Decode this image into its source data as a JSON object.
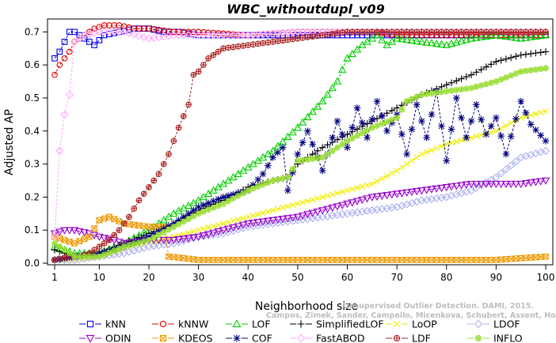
{
  "chart_data": {
    "type": "line",
    "title": "WBC_withoutdupl_v09",
    "xlabel": "Neighborhood size",
    "ylabel": "Adjusted AP",
    "xlim": [
      1,
      100
    ],
    "ylim": [
      0,
      0.72
    ],
    "xticks": [
      1,
      10,
      20,
      30,
      40,
      50,
      60,
      70,
      80,
      90,
      100
    ],
    "yticks": [
      0.0,
      0.1,
      0.2,
      0.3,
      0.4,
      0.5,
      0.6,
      0.7
    ],
    "ytick_labels": [
      "0.0",
      "0.1",
      "0.2",
      "0.3",
      "0.4",
      "0.5",
      "0.6",
      "0.7"
    ],
    "legend_position": "bottom",
    "series": [
      {
        "name": "kNN",
        "color": "#0000ee",
        "marker": "square",
        "points": [
          [
            1,
            0.62
          ],
          [
            2,
            0.64
          ],
          [
            3,
            0.67
          ],
          [
            4,
            0.7
          ],
          [
            5,
            0.7
          ],
          [
            7,
            0.68
          ],
          [
            9,
            0.66
          ],
          [
            11,
            0.69
          ],
          [
            14,
            0.7
          ],
          [
            17,
            0.71
          ],
          [
            20,
            0.71
          ],
          [
            23,
            0.7
          ],
          [
            26,
            0.7
          ],
          [
            30,
            0.69
          ],
          [
            40,
            0.69
          ],
          [
            50,
            0.69
          ],
          [
            60,
            0.69
          ],
          [
            70,
            0.69
          ],
          [
            80,
            0.69
          ],
          [
            90,
            0.69
          ],
          [
            100,
            0.69
          ]
        ]
      },
      {
        "name": "kNNW",
        "color": "#dd0000",
        "marker": "circle",
        "points": [
          [
            1,
            0.57
          ],
          [
            2,
            0.6
          ],
          [
            3,
            0.62
          ],
          [
            4,
            0.64
          ],
          [
            5,
            0.67
          ],
          [
            7,
            0.69
          ],
          [
            9,
            0.71
          ],
          [
            11,
            0.72
          ],
          [
            14,
            0.72
          ],
          [
            17,
            0.71
          ],
          [
            20,
            0.71
          ],
          [
            25,
            0.7
          ],
          [
            30,
            0.7
          ],
          [
            40,
            0.69
          ],
          [
            50,
            0.7
          ],
          [
            60,
            0.7
          ],
          [
            65,
            0.7
          ],
          [
            70,
            0.69
          ],
          [
            80,
            0.69
          ],
          [
            90,
            0.69
          ],
          [
            100,
            0.69
          ]
        ]
      },
      {
        "name": "LOF",
        "color": "#00cc00",
        "marker": "triangle",
        "points": [
          [
            1,
            0.05
          ],
          [
            5,
            0.03
          ],
          [
            10,
            0.03
          ],
          [
            15,
            0.06
          ],
          [
            20,
            0.1
          ],
          [
            25,
            0.15
          ],
          [
            30,
            0.19
          ],
          [
            35,
            0.24
          ],
          [
            40,
            0.29
          ],
          [
            45,
            0.34
          ],
          [
            50,
            0.41
          ],
          [
            55,
            0.49
          ],
          [
            58,
            0.55
          ],
          [
            60,
            0.62
          ],
          [
            63,
            0.66
          ],
          [
            66,
            0.69
          ],
          [
            68,
            0.66
          ],
          [
            70,
            0.68
          ],
          [
            75,
            0.67
          ],
          [
            80,
            0.66
          ],
          [
            85,
            0.68
          ],
          [
            90,
            0.69
          ],
          [
            95,
            0.68
          ],
          [
            100,
            0.69
          ]
        ]
      },
      {
        "name": "SimplifiedLOF",
        "color": "#000000",
        "marker": "plus",
        "points": [
          [
            1,
            0.04
          ],
          [
            5,
            0.02
          ],
          [
            10,
            0.03
          ],
          [
            15,
            0.06
          ],
          [
            20,
            0.09
          ],
          [
            25,
            0.12
          ],
          [
            30,
            0.16
          ],
          [
            35,
            0.19
          ],
          [
            40,
            0.23
          ],
          [
            45,
            0.25
          ],
          [
            48,
            0.26
          ],
          [
            50,
            0.3
          ],
          [
            55,
            0.35
          ],
          [
            60,
            0.39
          ],
          [
            65,
            0.43
          ],
          [
            70,
            0.47
          ],
          [
            75,
            0.51
          ],
          [
            80,
            0.54
          ],
          [
            85,
            0.57
          ],
          [
            90,
            0.61
          ],
          [
            95,
            0.63
          ],
          [
            100,
            0.64
          ]
        ]
      },
      {
        "name": "LoOP",
        "color": "#eeee00",
        "marker": "cross",
        "points": [
          [
            1,
            0.01
          ],
          [
            5,
            0.01
          ],
          [
            10,
            0.02
          ],
          [
            15,
            0.04
          ],
          [
            20,
            0.06
          ],
          [
            25,
            0.08
          ],
          [
            30,
            0.1
          ],
          [
            35,
            0.12
          ],
          [
            40,
            0.14
          ],
          [
            45,
            0.16
          ],
          [
            50,
            0.18
          ],
          [
            55,
            0.2
          ],
          [
            60,
            0.22
          ],
          [
            65,
            0.24
          ],
          [
            70,
            0.28
          ],
          [
            75,
            0.33
          ],
          [
            80,
            0.36
          ],
          [
            85,
            0.38
          ],
          [
            90,
            0.4
          ],
          [
            95,
            0.44
          ],
          [
            100,
            0.46
          ]
        ]
      },
      {
        "name": "LDOF",
        "color": "#aab0ee",
        "marker": "diamond",
        "points": [
          [
            1,
            0.01
          ],
          [
            5,
            0.01
          ],
          [
            10,
            0.02
          ],
          [
            15,
            0.03
          ],
          [
            20,
            0.05
          ],
          [
            25,
            0.06
          ],
          [
            30,
            0.08
          ],
          [
            35,
            0.09
          ],
          [
            40,
            0.11
          ],
          [
            45,
            0.12
          ],
          [
            50,
            0.13
          ],
          [
            55,
            0.14
          ],
          [
            60,
            0.15
          ],
          [
            65,
            0.16
          ],
          [
            70,
            0.17
          ],
          [
            75,
            0.19
          ],
          [
            80,
            0.2
          ],
          [
            85,
            0.22
          ],
          [
            90,
            0.26
          ],
          [
            95,
            0.32
          ],
          [
            100,
            0.34
          ]
        ]
      },
      {
        "name": "ODIN",
        "color": "#9900cc",
        "marker": "triangle-down",
        "points": [
          [
            1,
            0.09
          ],
          [
            3,
            0.1
          ],
          [
            5,
            0.1
          ],
          [
            8,
            0.09
          ],
          [
            10,
            0.08
          ],
          [
            13,
            0.07
          ],
          [
            15,
            0.06
          ],
          [
            20,
            0.07
          ],
          [
            25,
            0.07
          ],
          [
            30,
            0.08
          ],
          [
            35,
            0.1
          ],
          [
            40,
            0.12
          ],
          [
            45,
            0.13
          ],
          [
            50,
            0.14
          ],
          [
            55,
            0.16
          ],
          [
            60,
            0.18
          ],
          [
            65,
            0.2
          ],
          [
            70,
            0.21
          ],
          [
            75,
            0.22
          ],
          [
            80,
            0.23
          ],
          [
            85,
            0.24
          ],
          [
            90,
            0.24
          ],
          [
            95,
            0.24
          ],
          [
            100,
            0.25
          ]
        ]
      },
      {
        "name": "KDEOS",
        "color": "#ee9900",
        "marker": "square-x",
        "points": [
          [
            1,
            0.08
          ],
          [
            3,
            0.07
          ],
          [
            5,
            0.06
          ],
          [
            8,
            0.08
          ],
          [
            10,
            0.13
          ],
          [
            12,
            0.14
          ],
          [
            15,
            0.12
          ],
          [
            20,
            0.11
          ],
          [
            23,
            0.11
          ],
          [
            24,
            0.02
          ],
          [
            30,
            0.01
          ],
          [
            40,
            0.01
          ],
          [
            50,
            0.01
          ],
          [
            60,
            0.01
          ],
          [
            70,
            0.01
          ],
          [
            80,
            0.01
          ],
          [
            90,
            0.01
          ],
          [
            100,
            0.02
          ]
        ]
      },
      {
        "name": "COF",
        "color": "#000080",
        "marker": "asterisk",
        "points": [
          [
            1,
            0.01
          ],
          [
            5,
            0.02
          ],
          [
            10,
            0.03
          ],
          [
            15,
            0.05
          ],
          [
            20,
            0.08
          ],
          [
            25,
            0.12
          ],
          [
            30,
            0.17
          ],
          [
            35,
            0.2
          ],
          [
            40,
            0.22
          ],
          [
            43,
            0.27
          ],
          [
            45,
            0.32
          ],
          [
            47,
            0.35
          ],
          [
            48,
            0.22
          ],
          [
            50,
            0.33
          ],
          [
            52,
            0.4
          ],
          [
            55,
            0.28
          ],
          [
            58,
            0.43
          ],
          [
            60,
            0.35
          ],
          [
            62,
            0.47
          ],
          [
            64,
            0.38
          ],
          [
            66,
            0.49
          ],
          [
            68,
            0.4
          ],
          [
            70,
            0.45
          ],
          [
            72,
            0.33
          ],
          [
            74,
            0.48
          ],
          [
            76,
            0.38
          ],
          [
            78,
            0.52
          ],
          [
            80,
            0.31
          ],
          [
            82,
            0.5
          ],
          [
            84,
            0.38
          ],
          [
            86,
            0.48
          ],
          [
            88,
            0.39
          ],
          [
            90,
            0.44
          ],
          [
            92,
            0.33
          ],
          [
            95,
            0.49
          ],
          [
            97,
            0.42
          ],
          [
            100,
            0.37
          ]
        ]
      },
      {
        "name": "FastABOD",
        "color": "#ffaaff",
        "marker": "diamond",
        "points": [
          [
            1,
            0.08
          ],
          [
            2,
            0.34
          ],
          [
            3,
            0.45
          ],
          [
            4,
            0.51
          ],
          [
            5,
            0.67
          ],
          [
            7,
            0.69
          ],
          [
            10,
            0.7
          ],
          [
            15,
            0.7
          ],
          [
            20,
            0.68
          ],
          [
            25,
            0.69
          ],
          [
            30,
            0.69
          ],
          [
            40,
            0.69
          ],
          [
            50,
            0.7
          ],
          [
            60,
            0.7
          ],
          [
            70,
            0.7
          ],
          [
            80,
            0.7
          ],
          [
            90,
            0.7
          ],
          [
            100,
            0.7
          ]
        ]
      },
      {
        "name": "LDF",
        "color": "#aa2222",
        "marker": "circle-plus",
        "points": [
          [
            1,
            0.01
          ],
          [
            4,
            0.02
          ],
          [
            6,
            0.02
          ],
          [
            8,
            0.03
          ],
          [
            10,
            0.05
          ],
          [
            12,
            0.07
          ],
          [
            14,
            0.1
          ],
          [
            16,
            0.14
          ],
          [
            18,
            0.19
          ],
          [
            20,
            0.23
          ],
          [
            22,
            0.27
          ],
          [
            24,
            0.33
          ],
          [
            26,
            0.41
          ],
          [
            28,
            0.48
          ],
          [
            29,
            0.57
          ],
          [
            30,
            0.58
          ],
          [
            32,
            0.62
          ],
          [
            35,
            0.65
          ],
          [
            40,
            0.66
          ],
          [
            45,
            0.67
          ],
          [
            50,
            0.68
          ],
          [
            55,
            0.69
          ],
          [
            60,
            0.7
          ],
          [
            65,
            0.7
          ],
          [
            70,
            0.7
          ],
          [
            80,
            0.7
          ],
          [
            90,
            0.7
          ],
          [
            100,
            0.7
          ]
        ]
      },
      {
        "name": "INFLO",
        "color": "#99dd33",
        "marker": "circle-star",
        "points": [
          [
            1,
            0.06
          ],
          [
            5,
            0.02
          ],
          [
            10,
            0.02
          ],
          [
            15,
            0.05
          ],
          [
            20,
            0.07
          ],
          [
            25,
            0.11
          ],
          [
            30,
            0.15
          ],
          [
            35,
            0.18
          ],
          [
            40,
            0.22
          ],
          [
            45,
            0.25
          ],
          [
            48,
            0.26
          ],
          [
            50,
            0.31
          ],
          [
            55,
            0.32
          ],
          [
            60,
            0.37
          ],
          [
            65,
            0.41
          ],
          [
            70,
            0.44
          ],
          [
            72,
            0.49
          ],
          [
            75,
            0.51
          ],
          [
            80,
            0.52
          ],
          [
            85,
            0.53
          ],
          [
            90,
            0.55
          ],
          [
            95,
            0.58
          ],
          [
            100,
            0.59
          ]
        ]
      }
    ]
  },
  "watermark": {
    "line1": "Unsupervised Outlier Detection. DAMI, 2015.",
    "line2": "Campos, Zimek, Sander, Campello, Micenkova, Schubert, Assent, Houle"
  }
}
